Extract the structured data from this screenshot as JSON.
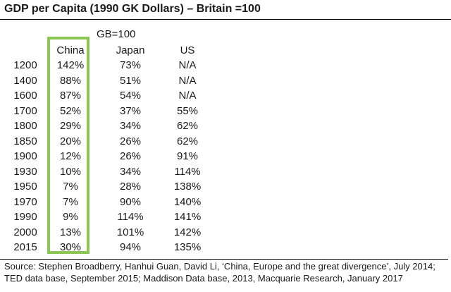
{
  "title": "GDP per Capita (1990 GK Dollars) – Britain =100",
  "header_note": "GB=100",
  "columns": {
    "china": "China",
    "japan": "Japan",
    "us": "US"
  },
  "rows": [
    {
      "year": "1200",
      "china": "142%",
      "japan": "73%",
      "us": "N/A"
    },
    {
      "year": "1400",
      "china": "88%",
      "japan": "51%",
      "us": "N/A"
    },
    {
      "year": "1600",
      "china": "87%",
      "japan": "54%",
      "us": "N/A"
    },
    {
      "year": "1700",
      "china": "52%",
      "japan": "37%",
      "us": "55%"
    },
    {
      "year": "1800",
      "china": "29%",
      "japan": "34%",
      "us": "62%"
    },
    {
      "year": "1850",
      "china": "20%",
      "japan": "26%",
      "us": "62%"
    },
    {
      "year": "1900",
      "china": "12%",
      "japan": "26%",
      "us": "91%"
    },
    {
      "year": "1930",
      "china": "10%",
      "japan": "34%",
      "us": "114%"
    },
    {
      "year": "1950",
      "china": "7%",
      "japan": "28%",
      "us": "138%"
    },
    {
      "year": "1970",
      "china": "7%",
      "japan": "90%",
      "us": "140%"
    },
    {
      "year": "1990",
      "china": "9%",
      "japan": "114%",
      "us": "141%"
    },
    {
      "year": "2000",
      "china": "13%",
      "japan": "101%",
      "us": "142%"
    },
    {
      "year": "2015",
      "china": "30%",
      "japan": "94%",
      "us": "135%"
    }
  ],
  "source": {
    "line1": "Source: Stephen Broadberry, Hanhui Guan, David Li, ‘China, Europe and the great divergence’, July 2014;",
    "line2": "TED data base, September 2015; Maddison Data base, 2013, Macquarie Research, January 2017"
  },
  "colors": {
    "highlight_border": "#8cc654"
  }
}
